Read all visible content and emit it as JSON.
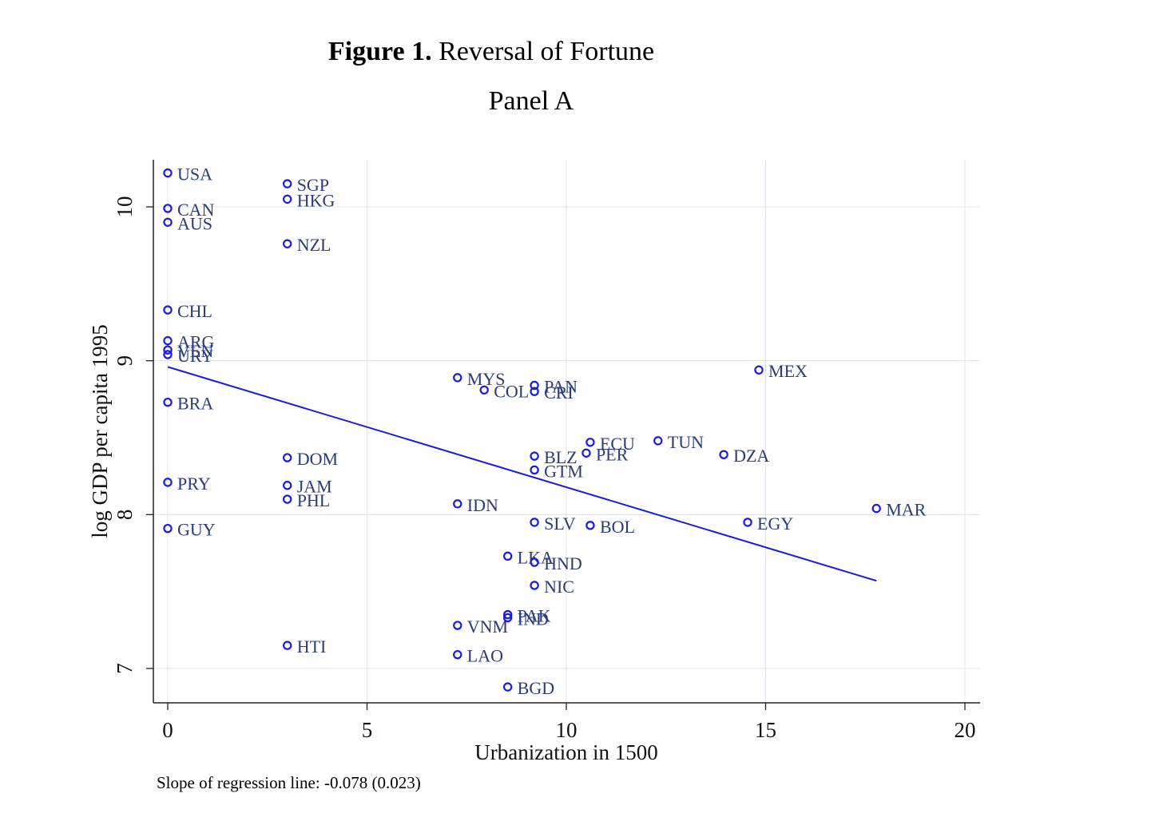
{
  "figure": {
    "label": "Figure 1.",
    "title": "Reversal of Fortune",
    "panel": "Panel A",
    "note": "Slope of  regression line: -0.078 (0.023)"
  },
  "colors": {
    "point": "#1a1ae6",
    "label": "#2a3a7a",
    "fit_line": "#1a1ae6",
    "grid": "#dfe3ea",
    "axis": "#222222"
  },
  "chart_data": {
    "type": "scatter",
    "title": "",
    "xlabel": "Urbanization in 1500",
    "ylabel": "log GDP per capita 1995",
    "xlim": [
      0,
      20
    ],
    "ylim": [
      6.8,
      10.3
    ],
    "xticks": [
      0,
      5,
      10,
      15,
      20
    ],
    "yticks": [
      7,
      8,
      9,
      10
    ],
    "grid": true,
    "points": [
      {
        "label": "USA",
        "x": 0,
        "y": 10.22
      },
      {
        "label": "CAN",
        "x": 0,
        "y": 9.99
      },
      {
        "label": "AUS",
        "x": 0,
        "y": 9.9
      },
      {
        "label": "CHL",
        "x": 0,
        "y": 9.33
      },
      {
        "label": "ARG",
        "x": 0,
        "y": 9.13
      },
      {
        "label": "VEN",
        "x": 0,
        "y": 9.07
      },
      {
        "label": "URY",
        "x": 0,
        "y": 9.04
      },
      {
        "label": "BRA",
        "x": 0,
        "y": 8.73
      },
      {
        "label": "PRY",
        "x": 0,
        "y": 8.21
      },
      {
        "label": "GUY",
        "x": 0,
        "y": 7.91
      },
      {
        "label": "SGP",
        "x": 3,
        "y": 10.15
      },
      {
        "label": "HKG",
        "x": 3,
        "y": 10.05
      },
      {
        "label": "NZL",
        "x": 3,
        "y": 9.76
      },
      {
        "label": "DOM",
        "x": 3,
        "y": 8.37
      },
      {
        "label": "JAM",
        "x": 3,
        "y": 8.19
      },
      {
        "label": "PHL",
        "x": 3,
        "y": 8.1
      },
      {
        "label": "HTI",
        "x": 3,
        "y": 7.15
      },
      {
        "label": "MYS",
        "x": 7.27,
        "y": 8.89
      },
      {
        "label": "COL",
        "x": 7.94,
        "y": 8.81
      },
      {
        "label": "PAN",
        "x": 9.2,
        "y": 8.84
      },
      {
        "label": "CRI",
        "x": 9.2,
        "y": 8.8
      },
      {
        "label": "IDN",
        "x": 7.27,
        "y": 8.07
      },
      {
        "label": "VNM",
        "x": 7.27,
        "y": 7.28
      },
      {
        "label": "LAO",
        "x": 7.27,
        "y": 7.09
      },
      {
        "label": "LKA",
        "x": 8.53,
        "y": 7.73
      },
      {
        "label": "PAK",
        "x": 8.53,
        "y": 7.35
      },
      {
        "label": "IND",
        "x": 8.53,
        "y": 7.33
      },
      {
        "label": "BGD",
        "x": 8.53,
        "y": 6.88
      },
      {
        "label": "BLZ",
        "x": 9.2,
        "y": 8.38
      },
      {
        "label": "GTM",
        "x": 9.2,
        "y": 8.29
      },
      {
        "label": "SLV",
        "x": 9.2,
        "y": 7.95
      },
      {
        "label": "HND",
        "x": 9.2,
        "y": 7.69
      },
      {
        "label": "NIC",
        "x": 9.2,
        "y": 7.54
      },
      {
        "label": "ECU",
        "x": 10.6,
        "y": 8.47
      },
      {
        "label": "PER",
        "x": 10.5,
        "y": 8.4
      },
      {
        "label": "BOL",
        "x": 10.6,
        "y": 7.93
      },
      {
        "label": "TUN",
        "x": 12.3,
        "y": 8.48
      },
      {
        "label": "DZA",
        "x": 13.95,
        "y": 8.39
      },
      {
        "label": "MEX",
        "x": 14.83,
        "y": 8.94
      },
      {
        "label": "EGY",
        "x": 14.55,
        "y": 7.95
      },
      {
        "label": "MAR",
        "x": 17.78,
        "y": 8.04
      }
    ],
    "fit_line": {
      "x": [
        0,
        17.78
      ],
      "y": [
        8.96,
        7.57
      ]
    }
  }
}
